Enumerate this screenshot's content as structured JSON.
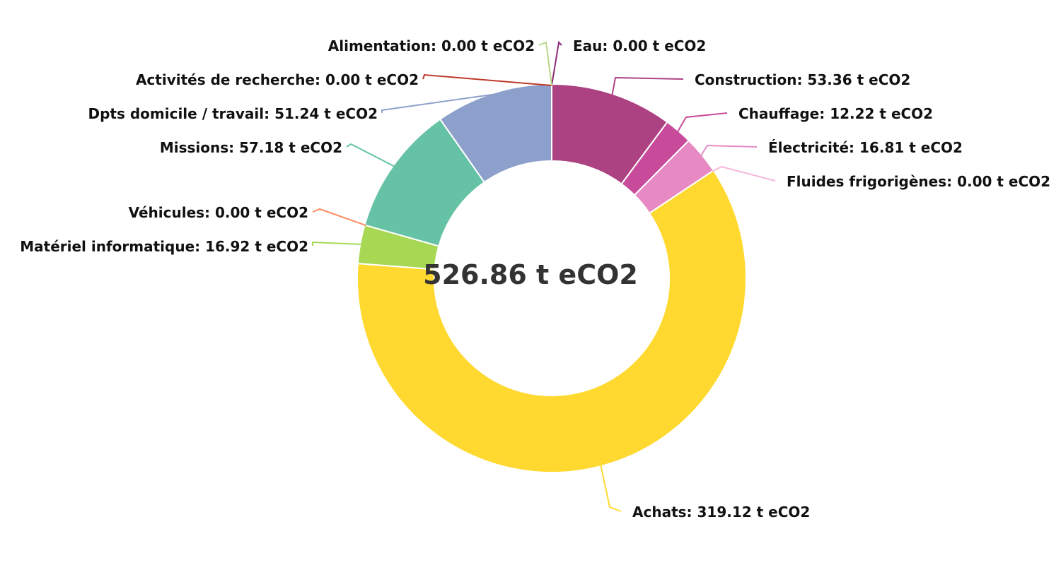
{
  "chart_data": {
    "type": "pie",
    "variant": "donut",
    "center_label": "526.86 t eCO2",
    "unit": "t eCO2",
    "slices": [
      {
        "label": "Eau: 0.00 t eCO2",
        "name": "Eau",
        "value": 0.0,
        "color": "#8e2a78"
      },
      {
        "label": "Construction: 53.36 t eCO2",
        "name": "Construction",
        "value": 53.36,
        "color": "#ad4283"
      },
      {
        "label": "Chauffage: 12.22 t eCO2",
        "name": "Chauffage",
        "value": 12.22,
        "color": "#c74b9a"
      },
      {
        "label": "Électricité: 16.81 t eCO2",
        "name": "Électricité",
        "value": 16.81,
        "color": "#e78ac3"
      },
      {
        "label": "Fluides frigorigènes: 0.00 t eCO2",
        "name": "Fluides frigorigènes",
        "value": 0.0,
        "color": "#f5b8dc"
      },
      {
        "label": "Achats: 319.12 t eCO2",
        "name": "Achats",
        "value": 319.12,
        "color": "#ffd92f"
      },
      {
        "label": "Matériel informatique: 16.92 t eCO2",
        "name": "Matériel informatique",
        "value": 16.92,
        "color": "#a6d854"
      },
      {
        "label": "Véhicules: 0.00 t eCO2",
        "name": "Véhicules",
        "value": 0.0,
        "color": "#fc8d62"
      },
      {
        "label": "Missions: 57.18 t eCO2",
        "name": "Missions",
        "value": 57.18,
        "color": "#66c2a5"
      },
      {
        "label": "Dpts domicile / travail: 51.24 t eCO2",
        "name": "Dpts domicile / travail",
        "value": 51.24,
        "color": "#8da0cb"
      },
      {
        "label": "Activités de recherche: 0.00 t eCO2",
        "name": "Activités de recherche",
        "value": 0.0,
        "color": "#c0392b"
      },
      {
        "label": "Alimentation: 0.00 t eCO2",
        "name": "Alimentation",
        "value": 0.0,
        "color": "#b8d98a"
      }
    ]
  }
}
